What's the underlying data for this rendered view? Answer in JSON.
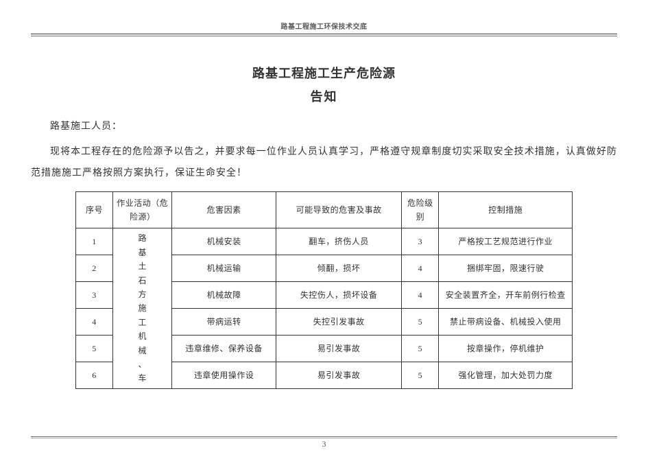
{
  "header": {
    "running_title": "路基工程施工环保技术交底"
  },
  "title": {
    "main": "路基工程施工生产危险源",
    "sub": "告知"
  },
  "salutation": "路基施工人员：",
  "body": "现将本工程存在的危险源予以告之，并要求每一位作业人员认真学习，严格遵守规章制度切实采取安全技术措施，认真做好防范措施施工严格按照方案执行，保证生命安全！",
  "table": {
    "columns": {
      "seq": "序号",
      "activity": "作业活动（危险源）",
      "factor": "危害因素",
      "harm": "可能导致的危害及事故",
      "level": "危险级别",
      "control": "控制措施"
    },
    "activity_merged": "路基土石方施工机械、车",
    "rows": [
      {
        "seq": "1",
        "factor": "机械安装",
        "harm": "翻车，挤伤人员",
        "level": "3",
        "control": "严格按工艺规范进行作业"
      },
      {
        "seq": "2",
        "factor": "机械运输",
        "harm": "倾翻，损坏",
        "level": "4",
        "control": "捆绑牢固，限速行驶"
      },
      {
        "seq": "3",
        "factor": "机械故障",
        "harm": "失控伤人，损坏设备",
        "level": "4",
        "control": "安全装置齐全，开车前例行检查"
      },
      {
        "seq": "4",
        "factor": "带病运转",
        "harm": "失控引发事故",
        "level": "5",
        "control": "禁止带病设备、机械投入使用"
      },
      {
        "seq": "5",
        "factor": "违章维修、保养设备",
        "harm": "易引发事故",
        "level": "5",
        "control": "按章操作，停机维护"
      },
      {
        "seq": "6",
        "factor": "违章使用操作设",
        "harm": "易引发事故",
        "level": "5",
        "control": "强化管理，加大处罚力度"
      }
    ]
  },
  "page_number": "3"
}
